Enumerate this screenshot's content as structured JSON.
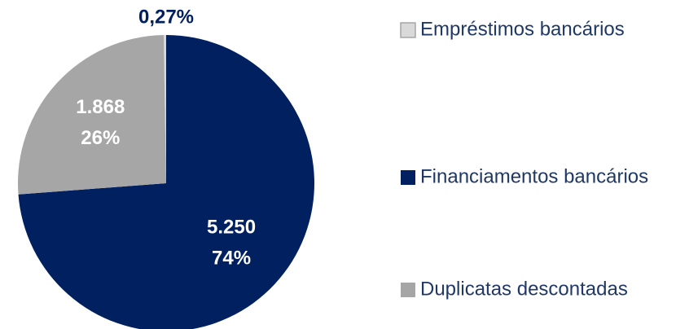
{
  "chart_data": {
    "type": "pie",
    "categories": [
      "Empréstimos bancários",
      "Financiamentos bancários",
      "Duplicatas descontadas"
    ],
    "values": [
      0.27,
      74,
      26
    ],
    "value_labels": [
      "0,27%",
      "74%",
      "26%"
    ],
    "amounts": [
      null,
      5250,
      1868
    ],
    "amount_labels": [
      null,
      "5.250",
      "1.868"
    ],
    "colors": [
      "#d9d9d9",
      "#002060",
      "#a6a6a6"
    ],
    "legend": "right"
  }
}
